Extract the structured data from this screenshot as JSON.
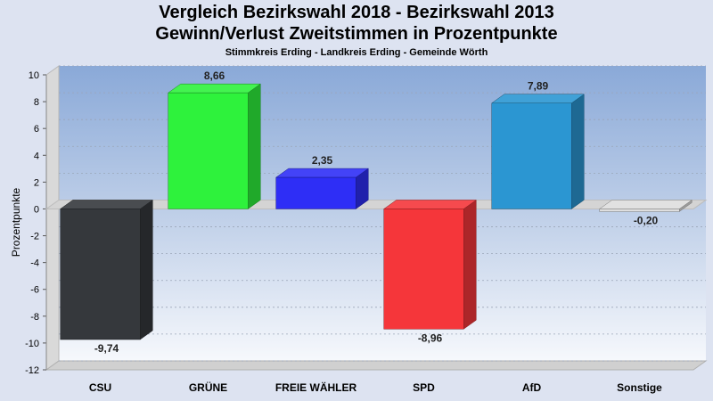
{
  "chart_data": {
    "type": "bar",
    "title": "Vergleich Bezirkswahl 2018 - Bezirkswahl 2013",
    "subtitle": "Gewinn/Verlust Zweitstimmen in Prozentpunkte",
    "subsubtitle": "Stimmkreis Erding - Landkreis Erding - Gemeinde Wörth",
    "xlabel": "",
    "ylabel": "Prozentpunkte",
    "ylim": [
      -12,
      10
    ],
    "ytick_step": 2,
    "grid": true,
    "categories": [
      "CSU",
      "GRÜNE",
      "FREIE WÄHLER",
      "SPD",
      "AfD",
      "Sonstige"
    ],
    "values": [
      -9.74,
      8.66,
      2.35,
      -8.96,
      7.89,
      -0.2
    ],
    "value_labels": [
      "-9,74",
      "8,66",
      "2,35",
      "-8,96",
      "7,89",
      "-0,20"
    ],
    "colors": [
      "#35383c",
      "#2ef23c",
      "#2e2ef6",
      "#f5363a",
      "#2b96d2",
      "#dedede"
    ]
  }
}
